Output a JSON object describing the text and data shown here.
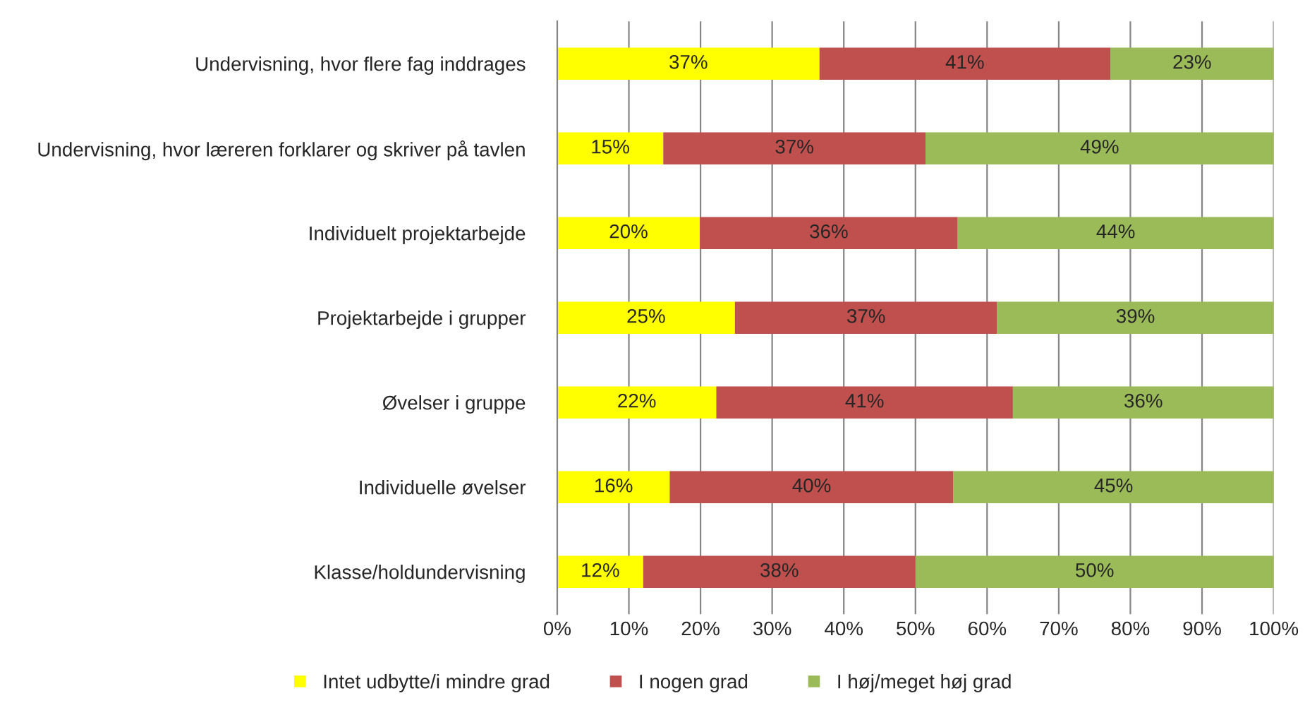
{
  "chart_data": {
    "type": "bar",
    "orientation": "horizontal",
    "stacked": true,
    "categories": [
      "Undervisning, hvor flere fag inddrages",
      "Undervisning, hvor læreren forklarer og skriver på tavlen",
      "Individuelt projektarbejde",
      "Projektarbejde i grupper",
      "Øvelser i gruppe",
      "Individuelle øvelser",
      "Klasse/holdundervisning"
    ],
    "series": [
      {
        "name": "Intet udbytte/i mindre grad",
        "color": "#ffff00",
        "values": [
          36.6,
          14.8,
          19.9,
          24.8,
          22.2,
          15.7,
          12.0
        ],
        "value_labels": [
          "37%",
          "15%",
          "20%",
          "25%",
          "22%",
          "16%",
          "12%"
        ]
      },
      {
        "name": "I nogen grad",
        "color": "#c0504d",
        "values": [
          40.6,
          36.6,
          36.0,
          36.6,
          41.4,
          39.6,
          38.0
        ],
        "value_labels": [
          "41%",
          "37%",
          "36%",
          "37%",
          "41%",
          "40%",
          "38%"
        ]
      },
      {
        "name": "I høj/meget høj grad",
        "color": "#9bbb59",
        "values": [
          22.8,
          48.6,
          44.1,
          38.6,
          36.4,
          44.7,
          50.0
        ],
        "value_labels": [
          "23%",
          "49%",
          "44%",
          "39%",
          "36%",
          "45%",
          "50%"
        ]
      }
    ],
    "xlim": [
      0,
      100
    ],
    "xticks": [
      {
        "value": 0,
        "label": "0%"
      },
      {
        "value": 10,
        "label": "10%"
      },
      {
        "value": 20,
        "label": "20%"
      },
      {
        "value": 30,
        "label": "30%"
      },
      {
        "value": 40,
        "label": "40%"
      },
      {
        "value": 50,
        "label": "50%"
      },
      {
        "value": 60,
        "label": "60%"
      },
      {
        "value": 70,
        "label": "70%"
      },
      {
        "value": 80,
        "label": "80%"
      },
      {
        "value": 90,
        "label": "90%"
      },
      {
        "value": 100,
        "label": "100%"
      }
    ],
    "grid": "x",
    "legend": "bottom"
  }
}
